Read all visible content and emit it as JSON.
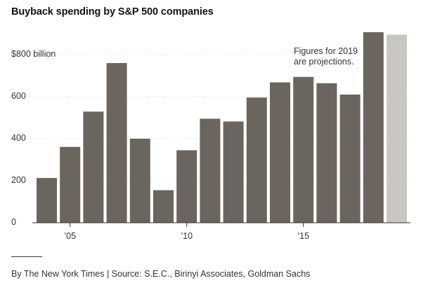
{
  "chart_data": {
    "type": "bar",
    "title": "Buyback spending by S&P 500 companies",
    "x": [
      2004,
      2005,
      2006,
      2007,
      2008,
      2009,
      2010,
      2011,
      2012,
      2013,
      2014,
      2015,
      2016,
      2017,
      2018,
      2019
    ],
    "values": [
      213,
      361,
      529,
      760,
      400,
      155,
      345,
      495,
      482,
      596,
      668,
      694,
      664,
      610,
      907,
      895
    ],
    "projected": [
      false,
      false,
      false,
      false,
      false,
      false,
      false,
      false,
      false,
      false,
      false,
      false,
      false,
      false,
      false,
      true
    ],
    "yticks": [
      {
        "value": 0,
        "label": "0"
      },
      {
        "value": 200,
        "label": "200"
      },
      {
        "value": 400,
        "label": "400"
      },
      {
        "value": 600,
        "label": "600"
      },
      {
        "value": 800,
        "label": "$800 billion"
      }
    ],
    "xticks": [
      {
        "value": 2005,
        "label": "’05"
      },
      {
        "value": 2010,
        "label": "’10"
      },
      {
        "value": 2015,
        "label": "’15"
      }
    ],
    "ylim": [
      0,
      920
    ],
    "grid": true,
    "annotation": [
      "Figures for 2019",
      "are projections."
    ],
    "colors": {
      "actual": "#6b655f",
      "projected": "#c9c7c2"
    }
  },
  "credit": "By The New York Times | Source: S.E.C., Birinyi Associates, Goldman Sachs"
}
